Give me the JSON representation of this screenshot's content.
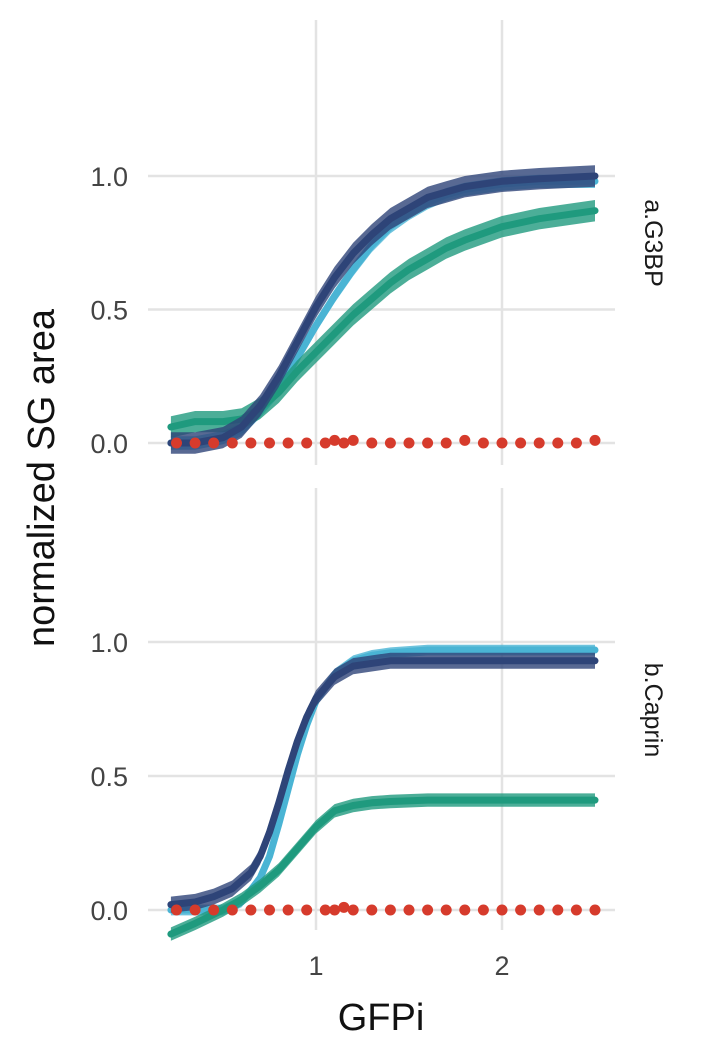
{
  "chart_data": {
    "type": "line",
    "xlabel": "GFPi",
    "ylabel": "normalized SG area",
    "x_ticks": [
      1,
      2
    ],
    "x_tick_labels": [
      "1",
      "2"
    ],
    "y_ticks": [
      0,
      0.5,
      1
    ],
    "y_tick_labels": [
      "0.0",
      "0.5",
      "1.0"
    ],
    "xlim": [
      0.2,
      2.5
    ],
    "ylim": [
      -0.1,
      1.3
    ],
    "grid": true,
    "legend": "none",
    "colors": {
      "navy": "#2e4478",
      "light_blue": "#4ab4d4",
      "green": "#1f9a7e",
      "points": "#d63b2c"
    },
    "panels": [
      {
        "label": "a.G3BP",
        "series": [
          {
            "color": "light_blue",
            "x": [
              0.22,
              0.35,
              0.5,
              0.6,
              0.7,
              0.8,
              0.9,
              1.0,
              1.1,
              1.2,
              1.3,
              1.4,
              1.5,
              1.6,
              1.7,
              1.8,
              2.0,
              2.2,
              2.5
            ],
            "y": [
              0.0,
              0.0,
              0.02,
              0.05,
              0.12,
              0.2,
              0.32,
              0.44,
              0.55,
              0.65,
              0.74,
              0.81,
              0.86,
              0.9,
              0.93,
              0.95,
              0.97,
              0.98,
              0.98
            ],
            "band": 0.025
          },
          {
            "color": "green",
            "x": [
              0.22,
              0.35,
              0.5,
              0.6,
              0.7,
              0.8,
              0.9,
              1.0,
              1.1,
              1.2,
              1.3,
              1.4,
              1.5,
              1.6,
              1.7,
              1.8,
              2.0,
              2.2,
              2.5
            ],
            "y": [
              0.06,
              0.08,
              0.08,
              0.09,
              0.13,
              0.19,
              0.27,
              0.34,
              0.41,
              0.48,
              0.54,
              0.6,
              0.65,
              0.69,
              0.73,
              0.76,
              0.81,
              0.84,
              0.87
            ],
            "band": 0.04
          },
          {
            "color": "navy",
            "x": [
              0.22,
              0.35,
              0.5,
              0.6,
              0.7,
              0.8,
              0.9,
              1.0,
              1.1,
              1.2,
              1.3,
              1.4,
              1.5,
              1.6,
              1.7,
              1.8,
              2.0,
              2.2,
              2.5
            ],
            "y": [
              0.0,
              0.0,
              0.02,
              0.06,
              0.14,
              0.25,
              0.38,
              0.51,
              0.62,
              0.71,
              0.78,
              0.84,
              0.88,
              0.92,
              0.94,
              0.96,
              0.98,
              0.99,
              1.0
            ],
            "band": 0.04
          },
          {
            "color": "points",
            "type": "scatter",
            "x": [
              0.25,
              0.35,
              0.45,
              0.55,
              0.65,
              0.75,
              0.85,
              0.95,
              1.05,
              1.1,
              1.15,
              1.2,
              1.3,
              1.4,
              1.5,
              1.6,
              1.7,
              1.8,
              1.9,
              2.0,
              2.1,
              2.2,
              2.3,
              2.4,
              2.5
            ],
            "y": [
              0,
              0,
              0,
              0,
              0,
              0,
              0,
              0,
              0,
              0.01,
              0,
              0.01,
              0,
              0,
              0,
              0,
              0,
              0.01,
              0,
              0,
              0,
              0,
              0,
              0,
              0.01
            ]
          }
        ]
      },
      {
        "label": "b.Caprin",
        "series": [
          {
            "color": "light_blue",
            "x": [
              0.22,
              0.35,
              0.5,
              0.6,
              0.7,
              0.75,
              0.8,
              0.85,
              0.9,
              0.95,
              1.0,
              1.1,
              1.2,
              1.3,
              1.4,
              1.6,
              1.8,
              2.0,
              2.5
            ],
            "y": [
              0.0,
              0.0,
              0.0,
              0.03,
              0.12,
              0.2,
              0.32,
              0.45,
              0.58,
              0.69,
              0.78,
              0.88,
              0.93,
              0.95,
              0.96,
              0.97,
              0.97,
              0.97,
              0.97
            ],
            "band": 0.02
          },
          {
            "color": "green",
            "x": [
              0.22,
              0.35,
              0.5,
              0.6,
              0.7,
              0.8,
              0.9,
              1.0,
              1.1,
              1.2,
              1.3,
              1.4,
              1.6,
              1.8,
              2.0,
              2.5
            ],
            "y": [
              -0.09,
              -0.05,
              0.0,
              0.04,
              0.09,
              0.15,
              0.23,
              0.31,
              0.37,
              0.39,
              0.4,
              0.405,
              0.41,
              0.41,
              0.41,
              0.41
            ],
            "band": 0.025
          },
          {
            "color": "navy",
            "x": [
              0.22,
              0.35,
              0.45,
              0.55,
              0.65,
              0.7,
              0.75,
              0.8,
              0.85,
              0.9,
              0.95,
              1.0,
              1.1,
              1.2,
              1.3,
              1.4,
              1.6,
              1.8,
              2.0,
              2.5
            ],
            "y": [
              0.02,
              0.03,
              0.05,
              0.08,
              0.14,
              0.2,
              0.29,
              0.4,
              0.52,
              0.63,
              0.72,
              0.79,
              0.87,
              0.91,
              0.92,
              0.93,
              0.93,
              0.93,
              0.93,
              0.93
            ],
            "band": 0.03
          },
          {
            "color": "points",
            "type": "scatter",
            "x": [
              0.25,
              0.35,
              0.45,
              0.55,
              0.65,
              0.75,
              0.85,
              0.95,
              1.05,
              1.1,
              1.15,
              1.2,
              1.3,
              1.4,
              1.5,
              1.6,
              1.7,
              1.8,
              1.9,
              2.0,
              2.1,
              2.2,
              2.3,
              2.4,
              2.5
            ],
            "y": [
              0,
              0,
              0,
              0,
              0,
              0,
              0,
              0,
              0,
              0,
              0.01,
              0,
              0,
              0,
              0,
              0,
              0,
              0,
              0,
              0,
              0,
              0,
              0,
              0,
              0
            ]
          }
        ]
      }
    ]
  }
}
